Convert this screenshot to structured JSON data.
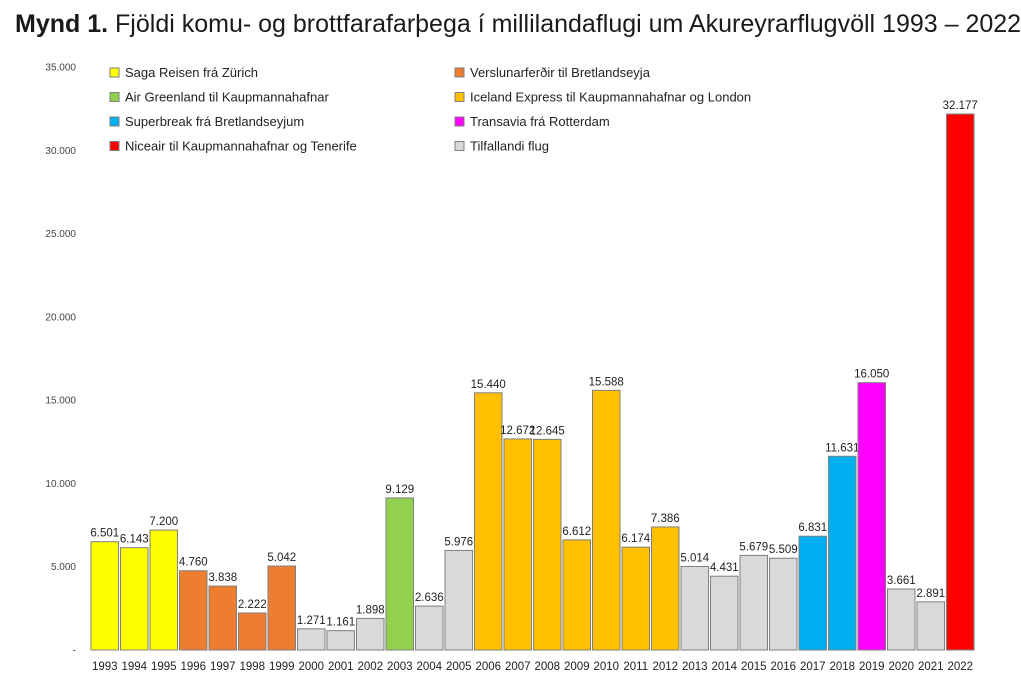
{
  "title": {
    "prefix": "Mynd 1.",
    "text": "Fjöldi komu- og brottfarafarþega í millilandaflugi um Akureyrarflugvöll 1993 – 2022"
  },
  "chart_data": {
    "type": "bar",
    "categories": [
      "1993",
      "1994",
      "1995",
      "1996",
      "1997",
      "1998",
      "1999",
      "2000",
      "2001",
      "2002",
      "2003",
      "2004",
      "2005",
      "2006",
      "2007",
      "2008",
      "2009",
      "2010",
      "2011",
      "2012",
      "2013",
      "2014",
      "2015",
      "2016",
      "2017",
      "2018",
      "2019",
      "2020",
      "2021",
      "2022"
    ],
    "values": [
      6501,
      6143,
      7200,
      4760,
      3838,
      2222,
      5042,
      1271,
      1161,
      1898,
      9129,
      2636,
      5976,
      15440,
      12672,
      12645,
      6612,
      15588,
      6174,
      7386,
      5014,
      4431,
      5679,
      5509,
      6831,
      11631,
      16050,
      3661,
      2891,
      32177
    ],
    "value_labels": [
      "6.501",
      "6.143",
      "7.200",
      "4.760",
      "3.838",
      "2.222",
      "5.042",
      "1.271",
      "1.161",
      "1.898",
      "9.129",
      "2.636",
      "5.976",
      "15.440",
      "12.672",
      "12.645",
      "6.612",
      "15.588",
      "6.174",
      "7.386",
      "5.014",
      "4.431",
      "5.679",
      "5.509",
      "6.831",
      "11.631",
      "16.050",
      "3.661",
      "2.891",
      "32.177"
    ],
    "bar_series": [
      0,
      0,
      0,
      1,
      1,
      1,
      1,
      7,
      7,
      7,
      2,
      7,
      7,
      3,
      3,
      3,
      3,
      3,
      3,
      3,
      7,
      7,
      7,
      7,
      4,
      4,
      5,
      7,
      7,
      6
    ],
    "series": [
      {
        "name": "Saga Reisen frá Zürich",
        "color": "#ffff00"
      },
      {
        "name": "Verslunarferðir til Bretlandseyja",
        "color": "#ed7d31"
      },
      {
        "name": "Air Greenland til Kaupmannahafnar",
        "color": "#92d050"
      },
      {
        "name": "Iceland Express til Kaupmannahafnar og London",
        "color": "#ffc000"
      },
      {
        "name": "Superbreak frá Bretlandseyjum",
        "color": "#00b0f0"
      },
      {
        "name": "Transavia frá Rotterdam",
        "color": "#ff00ff"
      },
      {
        "name": "Niceair til Kaupmannahafnar og Tenerife",
        "color": "#ff0000"
      },
      {
        "name": "Tilfallandi flug",
        "color": "#d9d9d9"
      }
    ],
    "ylim": [
      0,
      35000
    ],
    "yticks": [
      0,
      5000,
      10000,
      15000,
      20000,
      25000,
      30000,
      35000
    ],
    "ytick_labels": [
      "-",
      "5.000",
      "10.000",
      "15.000",
      "20.000",
      "25.000",
      "30.000",
      "35.000"
    ],
    "grid": false,
    "legend_position": "top-left",
    "xlabel": "",
    "ylabel": ""
  }
}
